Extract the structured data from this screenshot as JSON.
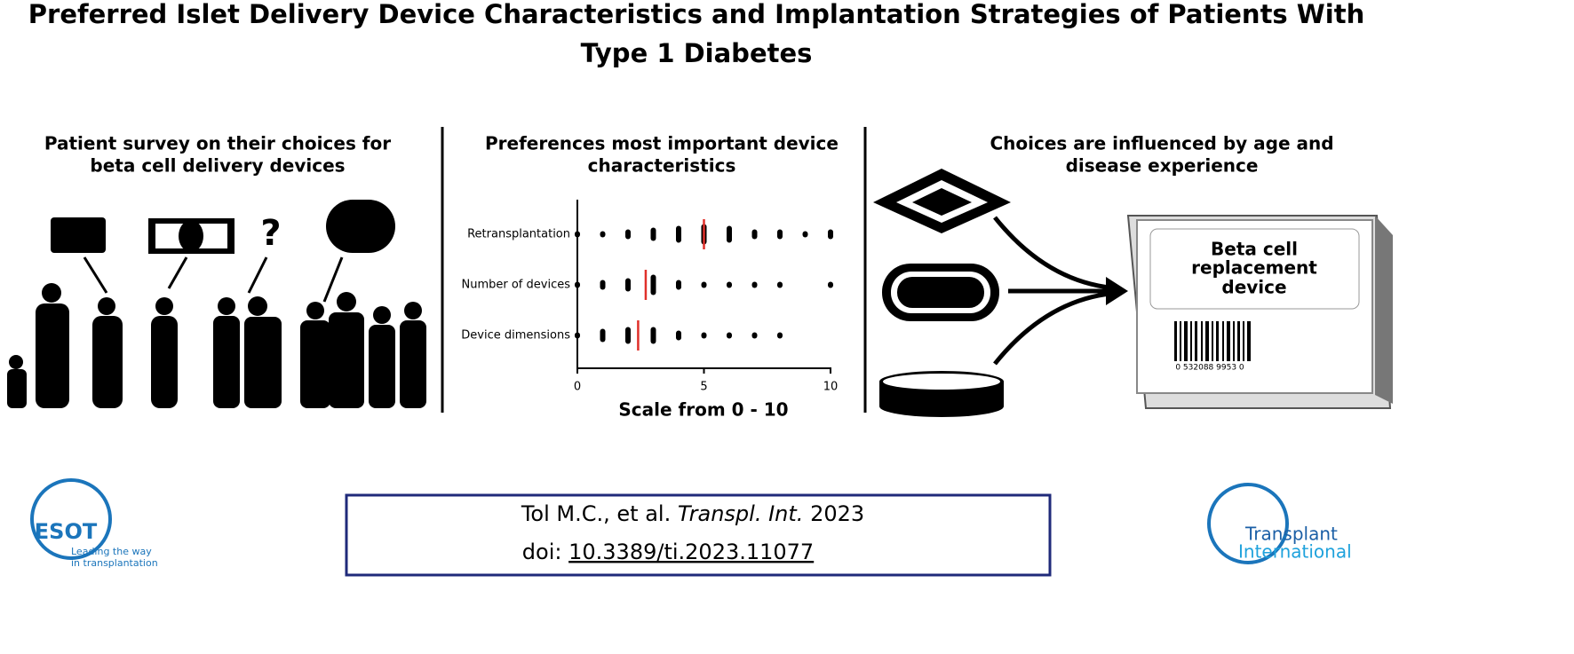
{
  "header": {
    "title_line1": "Preferred Islet Delivery Device Characteristics and Implantation Strategies of Patients With",
    "title_line2": "Type 1 Diabetes"
  },
  "panels": [
    {
      "heading_line1": "Patient survey on their choices for",
      "heading_line2": "beta cell delivery devices",
      "icon_text": "?"
    },
    {
      "heading_line1": "Preferences most important device",
      "heading_line2": "characteristics"
    },
    {
      "heading_line1": "Choices are influenced by age and",
      "heading_line2": "disease experience",
      "box_line1": "Beta cell",
      "box_line2": "replacement",
      "box_line3": "device",
      "barcode": "0 532088 9953 0"
    }
  ],
  "chart": {
    "type": "dot",
    "xlabel": "Scale from 0 - 10",
    "xlim": [
      0,
      10
    ],
    "xticks": [
      0,
      5,
      10
    ],
    "median_color": "#e0302a",
    "rows": [
      {
        "label": "Retransplantation",
        "x": [
          0,
          1,
          2,
          3,
          4,
          5,
          6,
          7,
          8,
          9,
          10
        ],
        "sizes": [
          1,
          1,
          2,
          3,
          4,
          5,
          4,
          2,
          2,
          1,
          2
        ],
        "median": 5
      },
      {
        "label": "Number of devices",
        "x": [
          0,
          1,
          2,
          3,
          4,
          5,
          6,
          7,
          8,
          10
        ],
        "sizes": [
          1,
          2,
          3,
          5,
          2,
          1,
          1,
          1,
          1,
          1
        ],
        "median": 2.7
      },
      {
        "label": "Device dimensions",
        "x": [
          0,
          1,
          2,
          3,
          4,
          5,
          6,
          7,
          8
        ],
        "sizes": [
          1,
          3,
          4,
          4,
          2,
          1,
          1,
          1,
          1
        ],
        "median": 2.4
      }
    ]
  },
  "citation": {
    "authors": "Tol M.C., et al.",
    "journal": "Transpl. Int.",
    "year": "2023",
    "doi_prefix": "doi:",
    "doi": "10.3389/ti.2023.11077"
  },
  "logos": {
    "left_name": "ESOT",
    "left_tag1": "Leading the way",
    "left_tag2": "in transplantation",
    "right_line1": "Transplant",
    "right_line2": "International"
  }
}
